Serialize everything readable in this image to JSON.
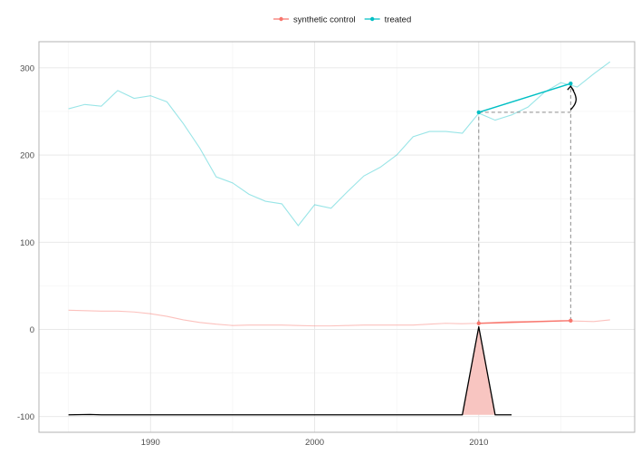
{
  "chart_data": {
    "type": "line",
    "title": "",
    "xlabel": "",
    "ylabel": "",
    "xlim": [
      1983.2,
      2019.5
    ],
    "ylim": [
      -118,
      330
    ],
    "x_ticks": [
      1990,
      2000,
      2010
    ],
    "y_ticks": [
      -100,
      0,
      100,
      200,
      300
    ],
    "grid": true,
    "legend": {
      "position": "top",
      "entries": [
        {
          "label": "synthetic control",
          "color": "#f8766d"
        },
        {
          "label": "treated",
          "color": "#00bfc4"
        }
      ]
    },
    "series": [
      {
        "name": "treated (full history)",
        "color": "#00bfc4",
        "opacity": 0.4,
        "x": [
          1985,
          1986,
          1987,
          1988,
          1989,
          1990,
          1991,
          1992,
          1993,
          1994,
          1995,
          1996,
          1997,
          1998,
          1999,
          2000,
          2001,
          2002,
          2003,
          2004,
          2005,
          2006,
          2007,
          2008,
          2009,
          2010,
          2011,
          2012,
          2013,
          2014,
          2015,
          2016,
          2017,
          2018
        ],
        "values": [
          253,
          258,
          256,
          274,
          265,
          268,
          261,
          236,
          208,
          175,
          168,
          155,
          147,
          144,
          119,
          143,
          139,
          158,
          176,
          186,
          200,
          221,
          227,
          227,
          225,
          248,
          240,
          246,
          255,
          272,
          283,
          278,
          293,
          307
        ]
      },
      {
        "name": "synthetic control (full history)",
        "color": "#f8766d",
        "opacity": 0.45,
        "x": [
          1985,
          1986,
          1987,
          1988,
          1989,
          1990,
          1991,
          1992,
          1993,
          1994,
          1995,
          1996,
          1997,
          1998,
          1999,
          2000,
          2001,
          2002,
          2003,
          2004,
          2005,
          2006,
          2007,
          2008,
          2009,
          2010,
          2011,
          2012,
          2013,
          2014,
          2015,
          2016,
          2017,
          2018
        ],
        "values": [
          22,
          21.5,
          21,
          21,
          20,
          18,
          15,
          11,
          8,
          6,
          4.5,
          5,
          5,
          5,
          4.5,
          4,
          4,
          4.5,
          5,
          5,
          5,
          5,
          6,
          7,
          6.5,
          7,
          8,
          9,
          9,
          9.5,
          10,
          9.5,
          9,
          11
        ]
      },
      {
        "name": "synthetic control",
        "color": "#f8766d",
        "highlight": true,
        "x": [
          2010,
          2015.6
        ],
        "values": [
          7,
          10
        ]
      },
      {
        "name": "treated",
        "color": "#00bfc4",
        "highlight": true,
        "x": [
          2010,
          2015.6
        ],
        "values": [
          249,
          282
        ]
      },
      {
        "name": "intervention indicator",
        "color": "#000000",
        "fill": "#f8c5c1",
        "x": [
          1985,
          1986.3,
          1987,
          2009,
          2010,
          2011,
          2012
        ],
        "values": [
          -98,
          -97.6,
          -98,
          -98,
          3,
          -98,
          -98
        ]
      }
    ],
    "annotations": [
      {
        "type": "dashed-horizontal",
        "x_from": 2010,
        "x_to": 2015.6,
        "y": 249
      },
      {
        "type": "dashed-vertical",
        "x": 2010,
        "y_from": 7,
        "y_to": 249
      },
      {
        "type": "dashed-vertical",
        "x": 2015.6,
        "y_from": 10,
        "y_to": 282
      },
      {
        "type": "curved-arrow",
        "x": 2015.6,
        "y_from": 252,
        "y_to": 282
      }
    ]
  }
}
